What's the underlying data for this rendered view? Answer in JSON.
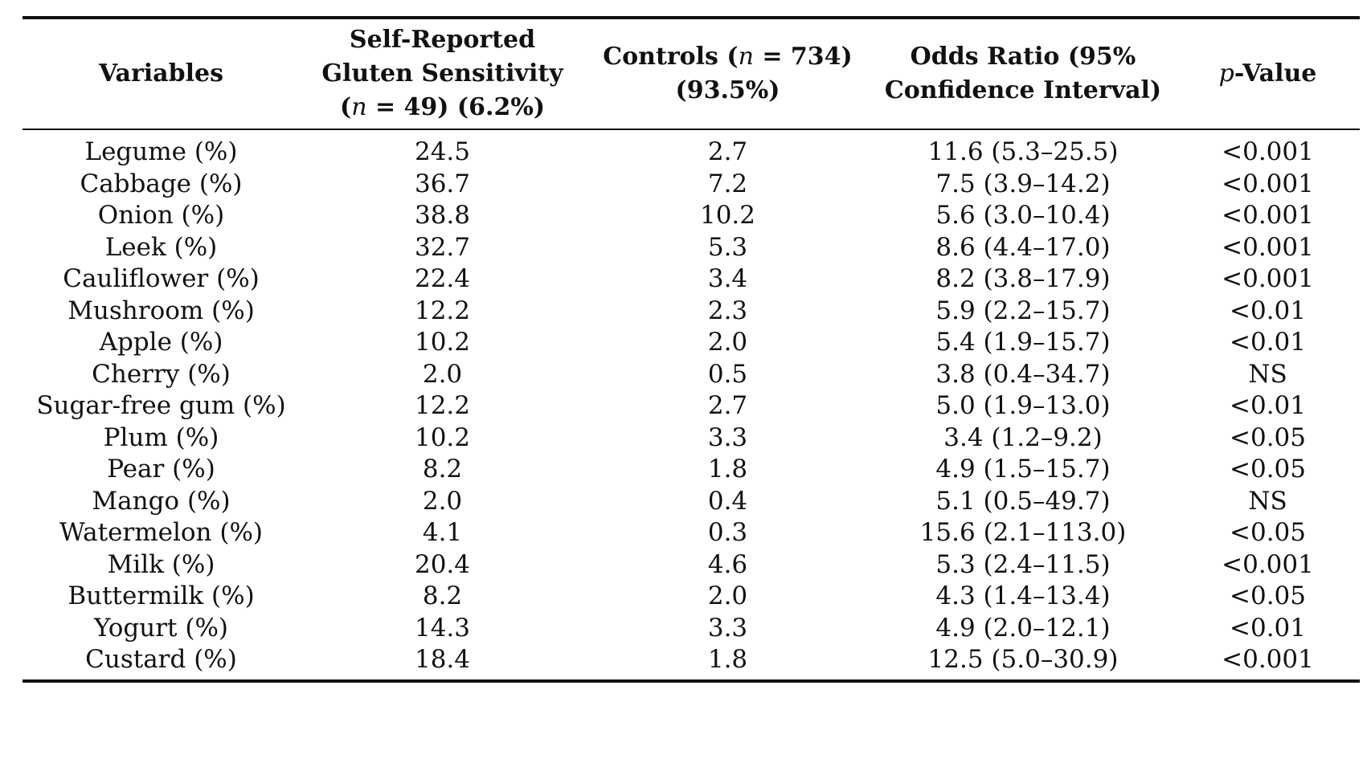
{
  "headers": {
    "variables": "Variables",
    "srgs_line1": "Self-Reported",
    "srgs_line2": "Gluten Sensitivity",
    "srgs_line3_pre": "(",
    "srgs_line3_n": "n",
    "srgs_line3_post": " = 49) (6.2%)",
    "controls_pre": "Controls (",
    "controls_n": "n",
    "controls_post": " = 734)",
    "controls_line2": "(93.5%)",
    "or_line1": "Odds Ratio (95%",
    "or_line2": "Confidence Interval)",
    "pvalue_p": "p",
    "pvalue_rest": "-Value"
  },
  "rows": [
    {
      "variable": "Legume (%)",
      "srgs": "24.5",
      "controls": "2.7",
      "or": "11.6 (5.3–25.5)",
      "p": "<0.001"
    },
    {
      "variable": "Cabbage (%)",
      "srgs": "36.7",
      "controls": "7.2",
      "or": "7.5 (3.9–14.2)",
      "p": "<0.001"
    },
    {
      "variable": "Onion (%)",
      "srgs": "38.8",
      "controls": "10.2",
      "or": "5.6 (3.0–10.4)",
      "p": "<0.001"
    },
    {
      "variable": "Leek (%)",
      "srgs": "32.7",
      "controls": "5.3",
      "or": "8.6 (4.4–17.0)",
      "p": "<0.001"
    },
    {
      "variable": "Cauliflower (%)",
      "srgs": "22.4",
      "controls": "3.4",
      "or": "8.2 (3.8–17.9)",
      "p": "<0.001"
    },
    {
      "variable": "Mushroom (%)",
      "srgs": "12.2",
      "controls": "2.3",
      "or": "5.9 (2.2–15.7)",
      "p": "<0.01"
    },
    {
      "variable": "Apple (%)",
      "srgs": "10.2",
      "controls": "2.0",
      "or": "5.4 (1.9–15.7)",
      "p": "<0.01"
    },
    {
      "variable": "Cherry (%)",
      "srgs": "2.0",
      "controls": "0.5",
      "or": "3.8 (0.4–34.7)",
      "p": "NS"
    },
    {
      "variable": "Sugar-free gum (%)",
      "srgs": "12.2",
      "controls": "2.7",
      "or": "5.0 (1.9–13.0)",
      "p": "<0.01"
    },
    {
      "variable": "Plum (%)",
      "srgs": "10.2",
      "controls": "3.3",
      "or": "3.4 (1.2–9.2)",
      "p": "<0.05"
    },
    {
      "variable": "Pear (%)",
      "srgs": "8.2",
      "controls": "1.8",
      "or": "4.9 (1.5–15.7)",
      "p": "<0.05"
    },
    {
      "variable": "Mango (%)",
      "srgs": "2.0",
      "controls": "0.4",
      "or": "5.1 (0.5–49.7)",
      "p": "NS"
    },
    {
      "variable": "Watermelon (%)",
      "srgs": "4.1",
      "controls": "0.3",
      "or": "15.6 (2.1–113.0)",
      "p": "<0.05"
    },
    {
      "variable": "Milk (%)",
      "srgs": "20.4",
      "controls": "4.6",
      "or": "5.3 (2.4–11.5)",
      "p": "<0.001"
    },
    {
      "variable": "Buttermilk (%)",
      "srgs": "8.2",
      "controls": "2.0",
      "or": "4.3 (1.4–13.4)",
      "p": "<0.05"
    },
    {
      "variable": "Yogurt (%)",
      "srgs": "14.3",
      "controls": "3.3",
      "or": "4.9 (2.0–12.1)",
      "p": "<0.01"
    },
    {
      "variable": "Custard (%)",
      "srgs": "18.4",
      "controls": "1.8",
      "or": "12.5 (5.0–30.9)",
      "p": "<0.001"
    }
  ]
}
